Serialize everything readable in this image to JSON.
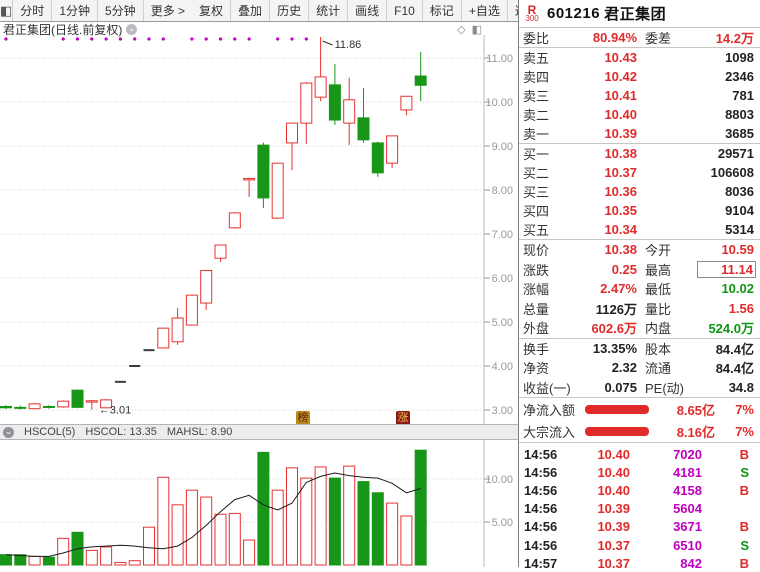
{
  "colors": {
    "up": "#e63232",
    "down": "#189618",
    "flat": "#3c3c3c",
    "volume_text": "#bf00bf",
    "dot": "#c400c4",
    "axis": "#999999"
  },
  "toolbar": {
    "left_items": [
      "分时",
      "1分钟",
      "5分钟",
      "更多 >"
    ],
    "right_items": [
      "复权",
      "叠加",
      "历史",
      "统计",
      "画线",
      "F10",
      "标记",
      "+自选",
      "返回"
    ]
  },
  "chart": {
    "title": "君正集团(日线.前复权)",
    "badges": [
      {
        "text": "榜"
      },
      {
        "text": "涨"
      }
    ],
    "indicator": {
      "name": "HSCOL(5)",
      "value1": "HSCOL: 13.35",
      "value2": "MAHSL: 8.90"
    }
  },
  "chart_data": {
    "type": "candlestick+volume",
    "price_ticks": [
      {
        "v": 11,
        "t": "11.00"
      },
      {
        "v": 10,
        "t": "10.00"
      },
      {
        "v": 9,
        "t": "9.00"
      },
      {
        "v": 8,
        "t": "8.00"
      },
      {
        "v": 7,
        "t": "7.00"
      },
      {
        "v": 6,
        "t": "6.00"
      },
      {
        "v": 5,
        "t": "5.00"
      },
      {
        "v": 4,
        "t": "4.00"
      },
      {
        "v": 3,
        "t": "3.00"
      }
    ],
    "vol_ticks": [
      {
        "v": 10,
        "t": "10.00"
      },
      {
        "v": 5,
        "t": "5.00"
      }
    ],
    "candles": [
      {
        "o": 3.08,
        "h": 3.11,
        "l": 3.02,
        "c": 3.05,
        "k": "d"
      },
      {
        "o": 3.06,
        "h": 3.1,
        "l": 3.01,
        "c": 3.04,
        "k": "d"
      },
      {
        "o": 3.03,
        "h": 3.16,
        "l": 3.02,
        "c": 3.14,
        "k": "u"
      },
      {
        "o": 3.08,
        "h": 3.11,
        "l": 3.03,
        "c": 3.06,
        "k": "d"
      },
      {
        "o": 3.07,
        "h": 3.22,
        "l": 3.05,
        "c": 3.2,
        "k": "u"
      },
      {
        "o": 3.45,
        "h": 3.47,
        "l": 3.04,
        "c": 3.06,
        "k": "d"
      },
      {
        "o": 3.18,
        "h": 3.23,
        "l": 3.01,
        "c": 3.21,
        "k": "u"
      },
      {
        "o": 3.05,
        "h": 3.25,
        "l": 3.04,
        "c": 3.23,
        "k": "u"
      },
      {
        "o": 3.64,
        "h": 3.65,
        "l": 3.63,
        "c": 3.64,
        "k": "f"
      },
      {
        "o": 4.0,
        "h": 4.01,
        "l": 3.99,
        "c": 4.0,
        "k": "f"
      },
      {
        "o": 4.36,
        "h": 4.37,
        "l": 4.35,
        "c": 4.36,
        "k": "f"
      },
      {
        "o": 4.41,
        "h": 4.87,
        "l": 4.4,
        "c": 4.86,
        "k": "u"
      },
      {
        "o": 4.55,
        "h": 5.32,
        "l": 4.48,
        "c": 5.09,
        "k": "u"
      },
      {
        "o": 4.93,
        "h": 5.62,
        "l": 4.92,
        "c": 5.61,
        "k": "u"
      },
      {
        "o": 5.43,
        "h": 6.18,
        "l": 5.27,
        "c": 6.17,
        "k": "u"
      },
      {
        "o": 6.45,
        "h": 6.76,
        "l": 6.36,
        "c": 6.75,
        "k": "u"
      },
      {
        "o": 7.14,
        "h": 7.49,
        "l": 7.12,
        "c": 7.48,
        "k": "u"
      },
      {
        "o": 8.23,
        "h": 8.28,
        "l": 7.84,
        "c": 8.26,
        "k": "u"
      },
      {
        "o": 9.02,
        "h": 9.08,
        "l": 7.59,
        "c": 7.82,
        "k": "d"
      },
      {
        "o": 7.36,
        "h": 8.62,
        "l": 7.34,
        "c": 8.61,
        "k": "u"
      },
      {
        "o": 9.07,
        "h": 9.53,
        "l": 8.45,
        "c": 9.52,
        "k": "u"
      },
      {
        "o": 9.52,
        "h": 10.45,
        "l": 9.05,
        "c": 10.43,
        "k": "u"
      },
      {
        "o": 10.11,
        "h": 11.86,
        "l": 10.02,
        "c": 10.57,
        "k": "u"
      },
      {
        "o": 10.39,
        "h": 10.86,
        "l": 9.48,
        "c": 9.59,
        "k": "d"
      },
      {
        "o": 9.52,
        "h": 10.55,
        "l": 9.02,
        "c": 10.05,
        "k": "u"
      },
      {
        "o": 9.64,
        "h": 10.32,
        "l": 9.07,
        "c": 9.14,
        "k": "d"
      },
      {
        "o": 9.07,
        "h": 9.1,
        "l": 8.3,
        "c": 8.39,
        "k": "d"
      },
      {
        "o": 8.61,
        "h": 9.24,
        "l": 8.5,
        "c": 9.23,
        "k": "u"
      },
      {
        "o": 9.82,
        "h": 10.14,
        "l": 9.7,
        "c": 10.13,
        "k": "u"
      },
      {
        "o": 10.59,
        "h": 11.14,
        "l": 10.02,
        "c": 10.38,
        "k": "d"
      }
    ],
    "volumes": [
      1.2,
      1.2,
      1.0,
      0.9,
      3.1,
      3.8,
      1.7,
      2.1,
      0.3,
      0.5,
      4.4,
      10.2,
      7.0,
      8.7,
      7.9,
      5.9,
      6.0,
      2.9,
      13.1,
      8.7,
      11.3,
      10.1,
      11.4,
      10.1,
      11.5,
      9.7,
      8.4,
      7.2,
      5.7,
      13.35
    ],
    "ma": [
      1.2,
      1.1,
      1.0,
      1.0,
      1.4,
      1.9,
      2.1,
      2.2,
      2.3,
      2.2,
      2.0,
      1.9,
      2.2,
      3.2,
      4.6,
      6.2,
      7.6,
      8.1,
      7.0,
      6.4,
      7.2,
      9.6,
      10.3,
      10.7,
      10.4,
      10.2,
      10.1,
      9.5,
      8.4,
      8.9
    ],
    "dots": [
      0,
      4,
      5,
      6,
      7,
      8,
      9,
      10,
      11,
      13,
      14,
      15,
      16,
      17,
      19,
      20,
      21
    ],
    "annotations": {
      "peak": {
        "text": "11.86",
        "index": 22
      },
      "low": {
        "text": "←3.01",
        "index": 6,
        "price": 3.01
      }
    }
  },
  "quote": {
    "stock": {
      "flag1": "R",
      "flag2": "300",
      "code": "601216",
      "name": "君正集团"
    },
    "weibi": {
      "label": "委比",
      "value": "80.94%",
      "label2": "委差",
      "value2": "14.2万"
    },
    "sells": [
      {
        "label": "卖五",
        "price": "10.43",
        "vol": "1098"
      },
      {
        "label": "卖四",
        "price": "10.42",
        "vol": "2346"
      },
      {
        "label": "卖三",
        "price": "10.41",
        "vol": "781"
      },
      {
        "label": "卖二",
        "price": "10.40",
        "vol": "8803"
      },
      {
        "label": "卖一",
        "price": "10.39",
        "vol": "3685"
      }
    ],
    "buys": [
      {
        "label": "买一",
        "price": "10.38",
        "vol": "29571"
      },
      {
        "label": "买二",
        "price": "10.37",
        "vol": "106608"
      },
      {
        "label": "买三",
        "price": "10.36",
        "vol": "8036"
      },
      {
        "label": "买四",
        "price": "10.35",
        "vol": "9104"
      },
      {
        "label": "买五",
        "price": "10.34",
        "vol": "5314"
      }
    ],
    "info": [
      {
        "l1": "现价",
        "v1": "10.38",
        "c1": "c-red",
        "l2": "今开",
        "v2": "10.59",
        "c2": "c-red"
      },
      {
        "l1": "涨跌",
        "v1": "0.25",
        "c1": "c-red",
        "l2": "最高",
        "v2": "11.14",
        "c2": "c-red boxed"
      },
      {
        "l1": "涨幅",
        "v1": "2.47%",
        "c1": "c-red",
        "l2": "最低",
        "v2": "10.02",
        "c2": "c-grn"
      },
      {
        "l1": "总量",
        "v1": "1126万",
        "c1": "c-dark",
        "l2": "量比",
        "v2": "1.56",
        "c2": "c-red"
      },
      {
        "l1": "外盘",
        "v1": "602.6万",
        "c1": "c-red",
        "l2": "内盘",
        "v2": "524.0万",
        "c2": "c-grn"
      }
    ],
    "fund": [
      {
        "l1": "换手",
        "v1": "13.35%",
        "l2": "股本",
        "v2": "84.4亿"
      },
      {
        "l1": "净资",
        "v1": "2.32",
        "l2": "流通",
        "v2": "84.4亿"
      },
      {
        "l1": "收益(一)",
        "v1": "0.075",
        "l2": "PE(动)",
        "v2": "34.8"
      }
    ],
    "flows": [
      {
        "label": "净流入额",
        "value": "8.65亿",
        "pct": "7%"
      },
      {
        "label": "大宗流入",
        "value": "8.16亿",
        "pct": "7%"
      }
    ],
    "ticks": [
      {
        "time": "14:56",
        "price": "10.40",
        "vol": "7020",
        "side": "B",
        "scls": "c-red"
      },
      {
        "time": "14:56",
        "price": "10.40",
        "vol": "4181",
        "side": "S",
        "scls": "c-grn"
      },
      {
        "time": "14:56",
        "price": "10.40",
        "vol": "4158",
        "side": "B",
        "scls": "c-red"
      },
      {
        "time": "14:56",
        "price": "10.39",
        "vol": "5604",
        "side": "",
        "scls": ""
      },
      {
        "time": "14:56",
        "price": "10.39",
        "vol": "3671",
        "side": "B",
        "scls": "c-red"
      },
      {
        "time": "14:56",
        "price": "10.37",
        "vol": "6510",
        "side": "S",
        "scls": "c-grn"
      },
      {
        "time": "14:57",
        "price": "10.37",
        "vol": "842",
        "side": "B",
        "scls": "c-red"
      }
    ]
  }
}
